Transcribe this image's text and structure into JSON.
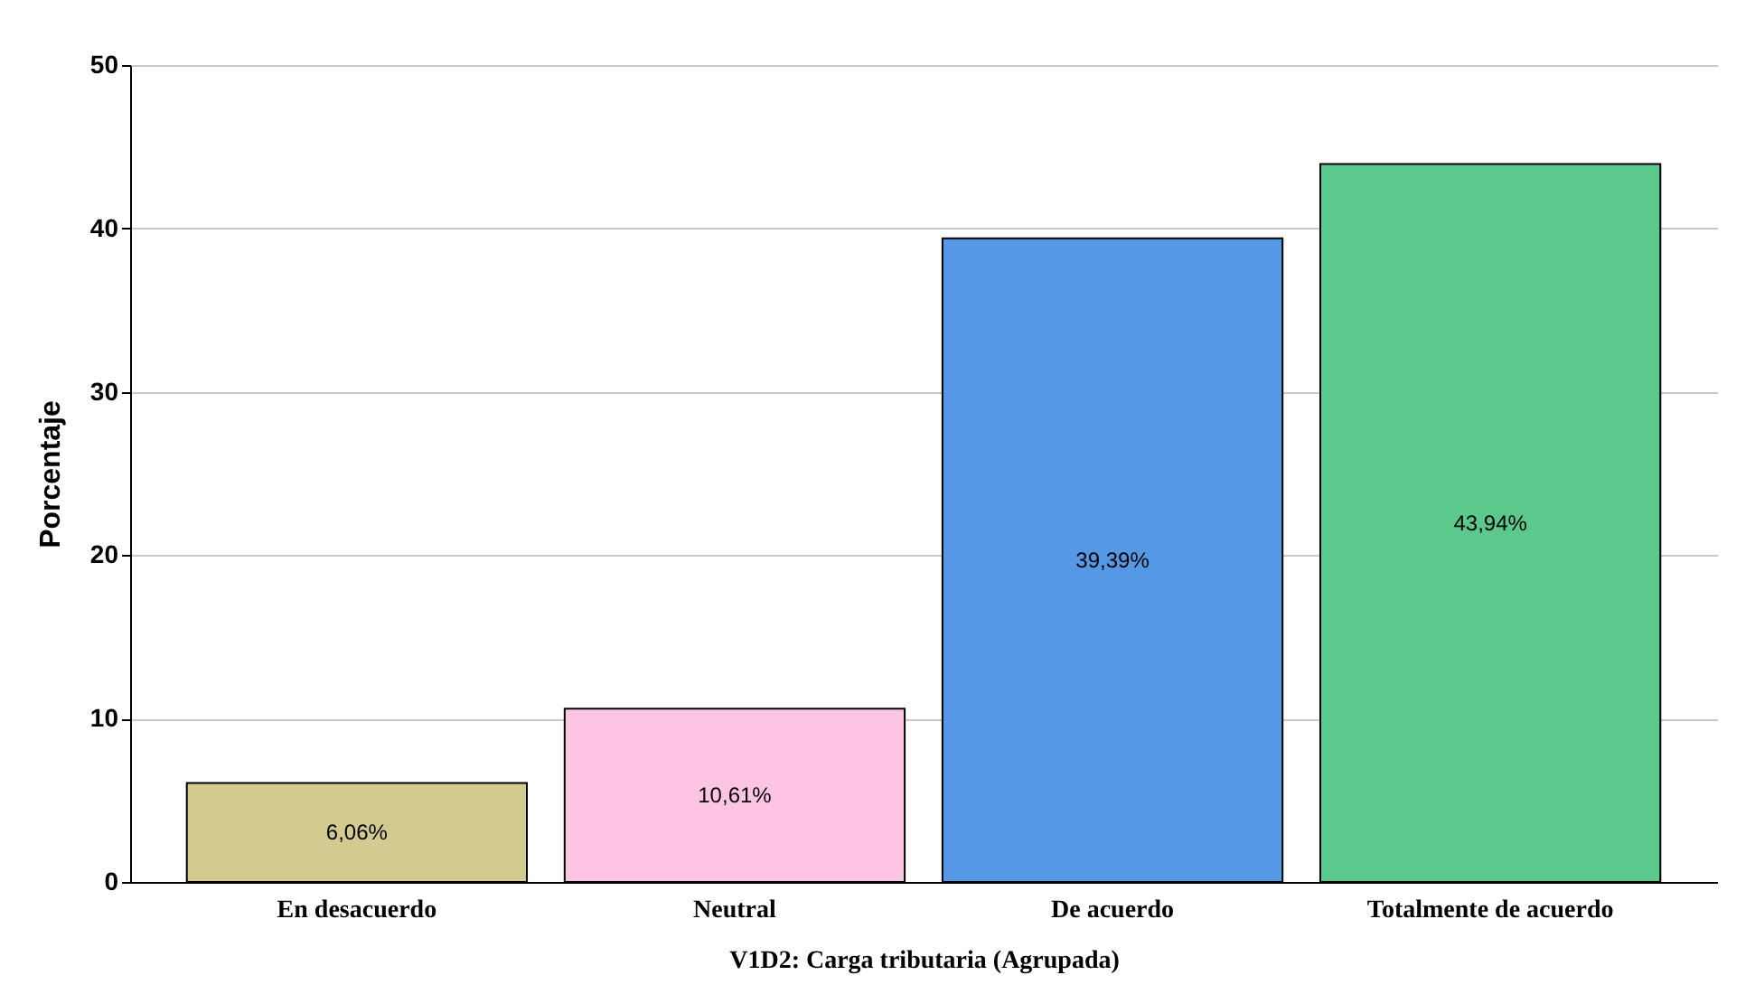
{
  "chart_data": {
    "type": "bar",
    "xlabel": "V1D2: Carga tributaria (Agrupada)",
    "ylabel": "Porcentaje",
    "categories": [
      "En desacuerdo",
      "Neutral",
      "De acuerdo",
      "Totalmente de acuerdo"
    ],
    "values": [
      6.06,
      10.61,
      39.39,
      43.94
    ],
    "colors": [
      "#d2ca8e",
      "#fec4e4",
      "#5598e6",
      "#5bc98b"
    ],
    "value_labels": [
      "6,06%",
      "10,61%",
      "39,39%",
      "43,94%"
    ],
    "ylim": [
      0,
      50
    ],
    "yticks": [
      0,
      10,
      20,
      30,
      40,
      50
    ],
    "grid": "y"
  }
}
